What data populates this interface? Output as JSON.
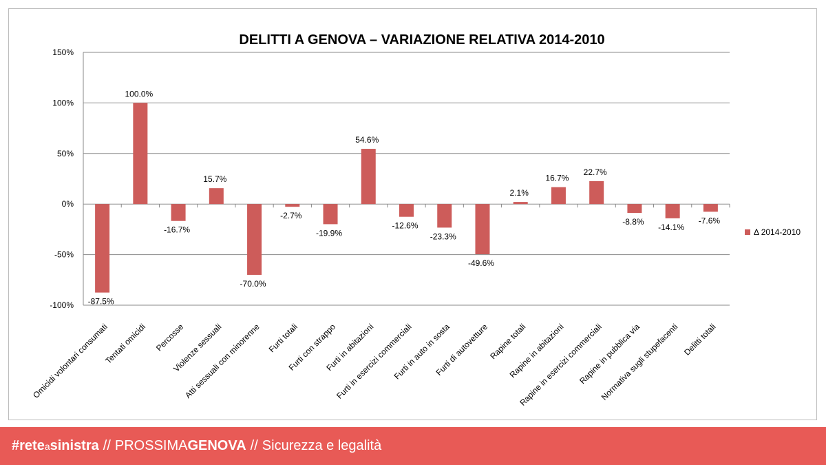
{
  "chart_data": {
    "type": "bar",
    "title": "DELITTI A GENOVA – VARIAZIONE RELATIVA 2014-2010",
    "categories": [
      "Omicidi volontari consumati",
      "Tentati omicidi",
      "Percosse",
      "Violenze sessuali",
      "Atti sessuali con minorenne",
      "Furti totali",
      "Furti con strappo",
      "Furti in abitazioni",
      "Furti in esercizi commerciali",
      "Furti in auto in sosta",
      "Furti di autovetture",
      "Rapine totali",
      "Rapine in abitazioni",
      "Rapine in esercizi commerciali",
      "Rapine in pubblica via",
      "Normativa sugli stupefacenti",
      "Delitti totali"
    ],
    "series": [
      {
        "name": "Δ 2014-2010",
        "color": "#cd5c5a",
        "values": [
          -87.5,
          100.0,
          -16.7,
          15.7,
          -70.0,
          -2.7,
          -19.9,
          54.6,
          -12.6,
          -23.3,
          -49.6,
          2.1,
          16.7,
          22.7,
          -8.8,
          -14.1,
          -7.6
        ],
        "labels": [
          "-87.5%",
          "100.0%",
          "-16.7%",
          "15.7%",
          "-70.0%",
          "-2.7%",
          "-19.9%",
          "54.6%",
          "-12.6%",
          "-23.3%",
          "-49.6%",
          "2.1%",
          "16.7%",
          "22.7%",
          "-8.8%",
          "-14.1%",
          "-7.6%"
        ]
      }
    ],
    "ylim": [
      -100,
      150
    ],
    "yticks": [
      -100,
      -50,
      0,
      50,
      100,
      150
    ],
    "ytick_labels": [
      "-100%",
      "-50%",
      "0%",
      "50%",
      "100%",
      "150%"
    ],
    "grid": true,
    "legend_position": "right",
    "xlabel": "",
    "ylabel": ""
  },
  "footer": {
    "brand_start": "#rete",
    "brand_a": "a",
    "brand_end": "sinistra",
    "sep1": "//",
    "prossima": "PROSSIMA",
    "genova": "GENOVA",
    "sep2": "//",
    "topic": "Sicurezza e legalità",
    "background": "#e85a56"
  }
}
